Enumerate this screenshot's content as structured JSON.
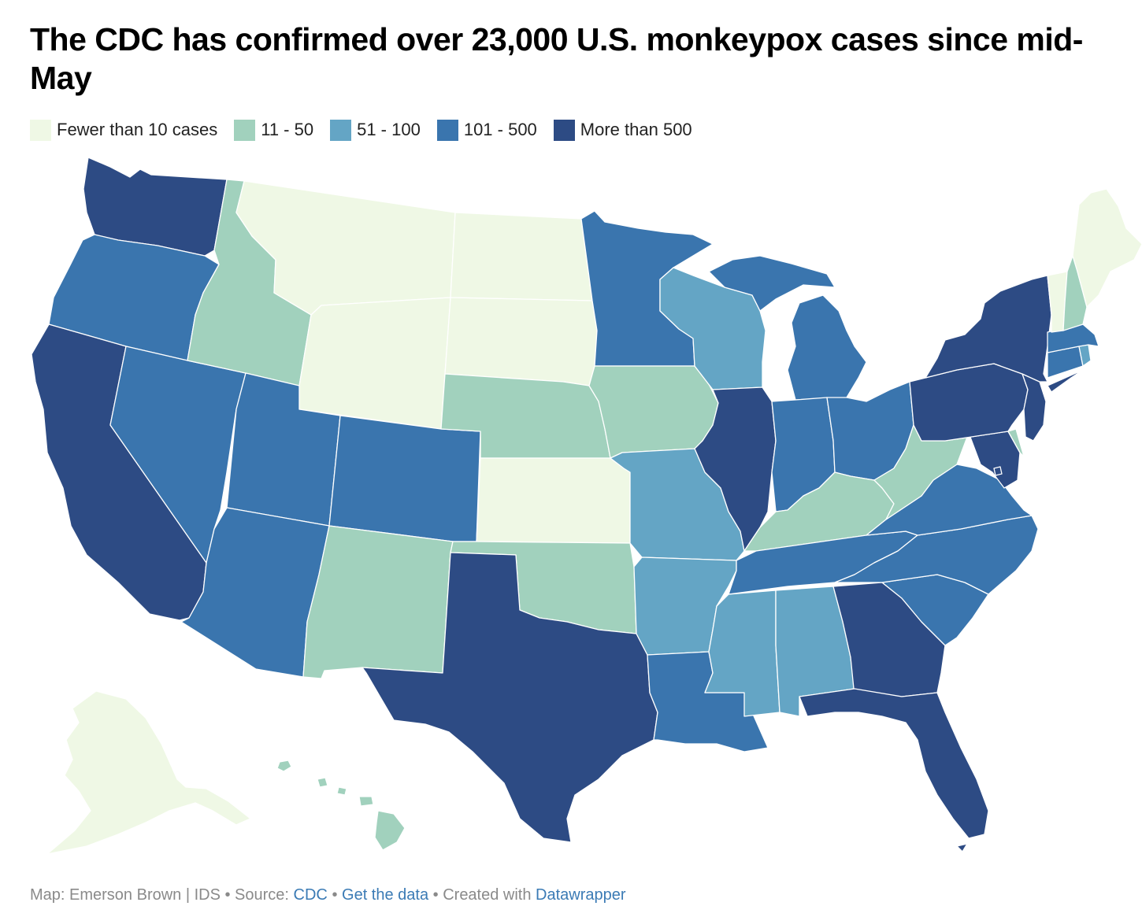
{
  "title": "The CDC has confirmed over 23,000 U.S. monkeypox cases since mid-May",
  "legend": [
    {
      "label": "Fewer than 10 cases",
      "color": "#eff8e5"
    },
    {
      "label": "11 - 50",
      "color": "#a1d1bd"
    },
    {
      "label": "51 - 100",
      "color": "#64a5c5"
    },
    {
      "label": "101 - 500",
      "color": "#3a75ae"
    },
    {
      "label": "More than 500",
      "color": "#2d4b84"
    }
  ],
  "map_data": {
    "type": "choropleth",
    "region": "United States",
    "bins": [
      "Fewer than 10 cases",
      "11 - 50",
      "51 - 100",
      "101 - 500",
      "More than 500"
    ],
    "states": {
      "WA": 4,
      "OR": 3,
      "CA": 4,
      "NV": 3,
      "ID": 1,
      "MT": 0,
      "WY": 0,
      "UT": 3,
      "AZ": 3,
      "CO": 3,
      "NM": 1,
      "ND": 0,
      "SD": 0,
      "NE": 1,
      "KS": 0,
      "OK": 1,
      "TX": 4,
      "MN": 3,
      "IA": 1,
      "MO": 2,
      "AR": 2,
      "LA": 3,
      "WI": 2,
      "IL": 4,
      "MI": 3,
      "IN": 3,
      "OH": 3,
      "KY": 1,
      "TN": 3,
      "MS": 2,
      "AL": 2,
      "GA": 4,
      "FL": 4,
      "SC": 3,
      "NC": 3,
      "VA": 3,
      "WV": 1,
      "MD": 4,
      "DE": 1,
      "PA": 4,
      "NJ": 4,
      "NY": 4,
      "CT": 3,
      "RI": 2,
      "MA": 3,
      "VT": 0,
      "NH": 1,
      "ME": 0,
      "DC": 4,
      "AK": 0,
      "HI": 1
    }
  },
  "footer": {
    "prefix": "Map: Emerson Brown | IDS • Source: ",
    "source_link": "CDC",
    "sep1": " • ",
    "data_link": "Get the data",
    "sep2": " • Created with ",
    "tool_link": "Datawrapper"
  }
}
